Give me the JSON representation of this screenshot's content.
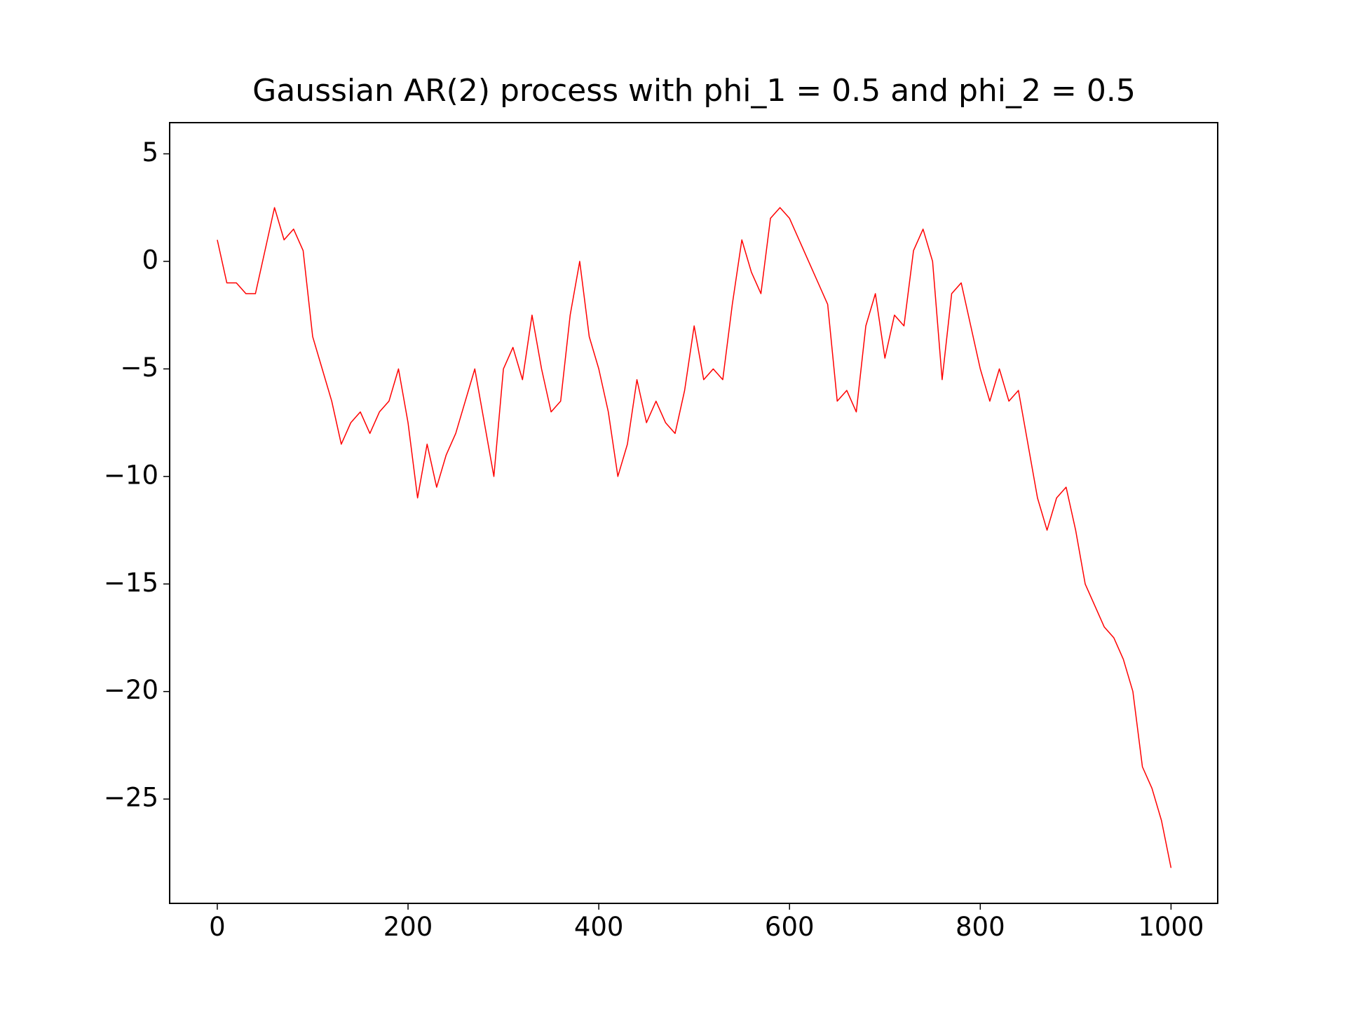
{
  "chart_data": {
    "type": "line",
    "title": "Gaussian AR(2) process with phi_1 = 0.5 and phi_2 = 0.5",
    "x": [
      0,
      10,
      20,
      30,
      40,
      50,
      60,
      70,
      80,
      90,
      100,
      110,
      120,
      130,
      140,
      150,
      160,
      170,
      180,
      190,
      200,
      210,
      220,
      230,
      240,
      250,
      260,
      270,
      280,
      290,
      300,
      310,
      320,
      330,
      340,
      350,
      360,
      370,
      380,
      390,
      400,
      410,
      420,
      430,
      440,
      450,
      460,
      470,
      480,
      490,
      500,
      510,
      520,
      530,
      540,
      550,
      560,
      570,
      580,
      590,
      600,
      610,
      620,
      630,
      640,
      650,
      660,
      670,
      680,
      690,
      700,
      710,
      720,
      730,
      740,
      750,
      760,
      770,
      780,
      790,
      800,
      810,
      820,
      830,
      840,
      850,
      860,
      870,
      880,
      890,
      900,
      910,
      920,
      930,
      940,
      950,
      960,
      970,
      980,
      990,
      1000
    ],
    "series": [
      {
        "color": "#ff0000",
        "values": [
          1.0,
          -1.0,
          -1.0,
          -1.5,
          -1.5,
          0.5,
          2.5,
          1.0,
          1.5,
          0.5,
          -3.5,
          -5.0,
          -6.5,
          -8.5,
          -7.5,
          -7.0,
          -8.0,
          -7.0,
          -6.5,
          -5.0,
          -7.5,
          -11.0,
          -8.5,
          -10.5,
          -9.0,
          -8.0,
          -6.5,
          -5.0,
          -7.5,
          -10.0,
          -5.0,
          -4.0,
          -5.5,
          -2.5,
          -5.0,
          -7.0,
          -6.5,
          -2.5,
          0.0,
          -3.5,
          -5.0,
          -7.0,
          -10.0,
          -8.5,
          -5.5,
          -7.5,
          -6.5,
          -7.5,
          -8.0,
          -6.0,
          -3.0,
          -5.5,
          -5.0,
          -5.5,
          -2.0,
          1.0,
          -0.5,
          -1.5,
          2.0,
          2.5,
          2.0,
          1.0,
          0.0,
          -1.0,
          -2.0,
          -6.5,
          -6.0,
          -7.0,
          -3.0,
          -1.5,
          -4.5,
          -2.5,
          -3.0,
          0.5,
          1.5,
          0.0,
          -5.5,
          -1.5,
          -1.0,
          -3.0,
          -5.0,
          -6.5,
          -5.0,
          -6.5,
          -6.0,
          -8.5,
          -11.0,
          -12.5,
          -11.0,
          -10.5,
          -12.5,
          -15.0,
          -16.0,
          -17.0,
          -17.5,
          -18.5,
          -20.0,
          -23.5,
          -24.5,
          -26.0,
          -28.2
        ]
      }
    ],
    "xlim": [
      -49.95,
      1048.95
    ],
    "ylim": [
      -29.85,
      6.45
    ],
    "xticks": [
      0,
      200,
      400,
      600,
      800,
      1000
    ],
    "yticks": [
      {
        "value": -25,
        "label": "−25"
      },
      {
        "value": -20,
        "label": "−20"
      },
      {
        "value": -15,
        "label": "−15"
      },
      {
        "value": -10,
        "label": "−10"
      },
      {
        "value": -5,
        "label": "−5"
      },
      0,
      5
    ]
  }
}
